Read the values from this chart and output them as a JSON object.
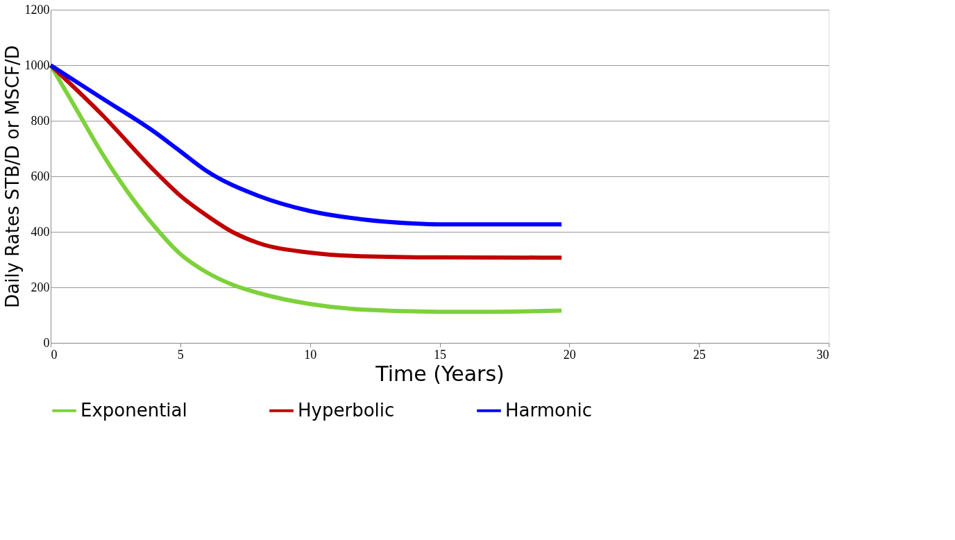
{
  "chart_data": {
    "type": "line",
    "xlabel": "Time (Years)",
    "ylabel": "Daily Rates STB/D or MSCF/D",
    "xlim": [
      0,
      30
    ],
    "xticks": [
      0,
      5,
      10,
      15,
      20,
      25,
      30
    ],
    "ylim": [
      0,
      1200
    ],
    "yticks": [
      0,
      200,
      400,
      600,
      800,
      1000,
      1200
    ],
    "grid": "y",
    "legend": "bottom",
    "marker": "none",
    "line_style": "solid",
    "series": [
      {
        "name": "Exponential",
        "color": "#7dd13b",
        "x": [
          0,
          1,
          2,
          3,
          4,
          5,
          6,
          7,
          8,
          10,
          12,
          15,
          17,
          19.7
        ],
        "values": [
          1000,
          840,
          680,
          540,
          420,
          320,
          255,
          210,
          180,
          140,
          120,
          112,
          112,
          116
        ]
      },
      {
        "name": "Hyperbolic",
        "color": "#c00000",
        "x": [
          0,
          2,
          4,
          5,
          6,
          7,
          8,
          10,
          12,
          15,
          19.7
        ],
        "values": [
          1000,
          820,
          620,
          530,
          460,
          400,
          360,
          325,
          312,
          308,
          307
        ]
      },
      {
        "name": "Harmonic",
        "color": "#0000ff",
        "x": [
          0,
          2,
          4,
          5,
          6,
          8,
          10,
          12,
          14,
          15,
          19.7
        ],
        "values": [
          1000,
          880,
          760,
          690,
          620,
          530,
          475,
          445,
          430,
          427,
          427
        ]
      }
    ]
  }
}
